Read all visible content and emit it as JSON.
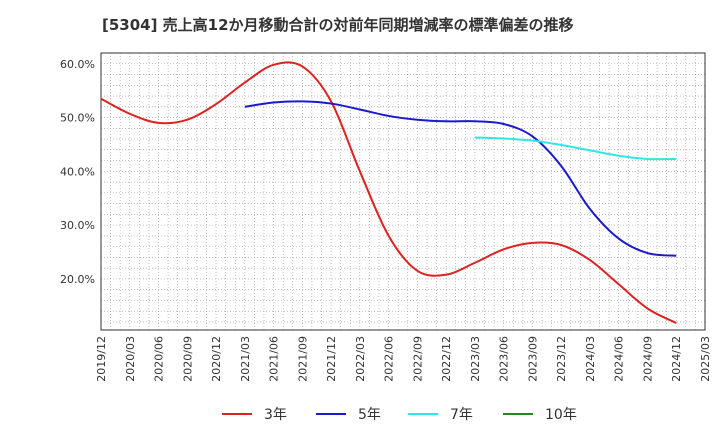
{
  "chart_data": {
    "type": "line",
    "title": "[5304]  売上高12か月移動合計の対前年同期増減率の標準偏差の推移",
    "xlabel": "",
    "ylabel": "",
    "x_ticks": [
      "2019/12",
      "2020/03",
      "2020/06",
      "2020/09",
      "2020/12",
      "2021/03",
      "2021/06",
      "2021/09",
      "2021/12",
      "2022/03",
      "2022/06",
      "2022/09",
      "2022/12",
      "2023/03",
      "2023/06",
      "2023/09",
      "2023/12",
      "2024/03",
      "2024/06",
      "2024/09",
      "2024/12",
      "2025/03"
    ],
    "y_ticks": [
      20,
      30,
      40,
      50,
      60
    ],
    "y_tick_labels": [
      "20.0%",
      "30.0%",
      "40.0%",
      "50.0%",
      "60.0%"
    ],
    "ylim": [
      10.5,
      62
    ],
    "grid": true,
    "legend_position": "bottom",
    "series": [
      {
        "name": "3年",
        "color": "#dd2222",
        "values": [
          {
            "x": "2019/12",
            "y": 53.5
          },
          {
            "x": "2020/03",
            "y": 50.7
          },
          {
            "x": "2020/06",
            "y": 49.0
          },
          {
            "x": "2020/09",
            "y": 49.6
          },
          {
            "x": "2020/12",
            "y": 52.5
          },
          {
            "x": "2021/03",
            "y": 56.5
          },
          {
            "x": "2021/06",
            "y": 59.8
          },
          {
            "x": "2021/09",
            "y": 59.5
          },
          {
            "x": "2021/12",
            "y": 53.0
          },
          {
            "x": "2022/03",
            "y": 40.0
          },
          {
            "x": "2022/06",
            "y": 28.0
          },
          {
            "x": "2022/09",
            "y": 21.5
          },
          {
            "x": "2022/12",
            "y": 20.8
          },
          {
            "x": "2023/03",
            "y": 23.0
          },
          {
            "x": "2023/06",
            "y": 25.5
          },
          {
            "x": "2023/09",
            "y": 26.7
          },
          {
            "x": "2023/12",
            "y": 26.3
          },
          {
            "x": "2024/03",
            "y": 23.5
          },
          {
            "x": "2024/06",
            "y": 19.0
          },
          {
            "x": "2024/09",
            "y": 14.5
          },
          {
            "x": "2024/12",
            "y": 11.8
          }
        ]
      },
      {
        "name": "5年",
        "color": "#1a1acc",
        "values": [
          {
            "x": "2021/03",
            "y": 52.0
          },
          {
            "x": "2021/06",
            "y": 52.8
          },
          {
            "x": "2021/09",
            "y": 53.0
          },
          {
            "x": "2021/12",
            "y": 52.6
          },
          {
            "x": "2022/03",
            "y": 51.5
          },
          {
            "x": "2022/06",
            "y": 50.3
          },
          {
            "x": "2022/09",
            "y": 49.6
          },
          {
            "x": "2022/12",
            "y": 49.3
          },
          {
            "x": "2023/03",
            "y": 49.3
          },
          {
            "x": "2023/06",
            "y": 48.8
          },
          {
            "x": "2023/09",
            "y": 46.5
          },
          {
            "x": "2023/12",
            "y": 41.0
          },
          {
            "x": "2024/03",
            "y": 33.0
          },
          {
            "x": "2024/06",
            "y": 27.5
          },
          {
            "x": "2024/09",
            "y": 24.8
          },
          {
            "x": "2024/12",
            "y": 24.3
          }
        ]
      },
      {
        "name": "7年",
        "color": "#33e6e6",
        "values": [
          {
            "x": "2023/03",
            "y": 46.3
          },
          {
            "x": "2023/06",
            "y": 46.1
          },
          {
            "x": "2023/09",
            "y": 45.7
          },
          {
            "x": "2023/12",
            "y": 44.9
          },
          {
            "x": "2024/03",
            "y": 43.9
          },
          {
            "x": "2024/06",
            "y": 42.9
          },
          {
            "x": "2024/09",
            "y": 42.3
          },
          {
            "x": "2024/12",
            "y": 42.3
          }
        ]
      },
      {
        "name": "10年",
        "color": "#228822",
        "values": []
      }
    ]
  }
}
